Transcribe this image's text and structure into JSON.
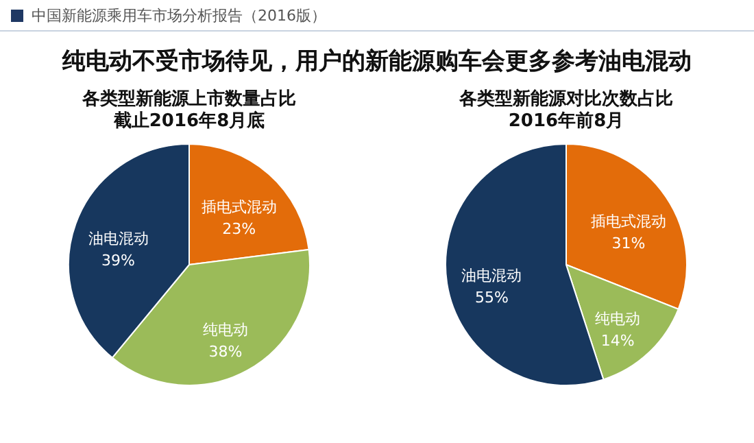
{
  "chart_data": [
    {
      "type": "other",
      "annotations": [
        "中国新能源乘用车市场分析报告（2016版）",
        "纯电动不受市场待见，用户的新能源购车会更多参考油电混动"
      ]
    },
    {
      "type": "pie",
      "title": "各类型新能源上市数量占比",
      "subtitle": "截止2016年8月底",
      "categories": [
        "插电式混动",
        "纯电动",
        "油电混动"
      ],
      "values": [
        23,
        38,
        39
      ],
      "value_labels": [
        "23%",
        "38%",
        "39%"
      ],
      "colors": [
        "#e36c0a",
        "#9bbb59",
        "#17375e"
      ]
    },
    {
      "type": "pie",
      "title": "各类型新能源对比次数占比",
      "subtitle": "2016年前8月",
      "categories": [
        "插电式混动",
        "纯电动",
        "油电混动"
      ],
      "values": [
        31,
        14,
        55
      ],
      "value_labels": [
        "31%",
        "14%",
        "55%"
      ],
      "colors": [
        "#e36c0a",
        "#9bbb59",
        "#17375e"
      ]
    }
  ]
}
